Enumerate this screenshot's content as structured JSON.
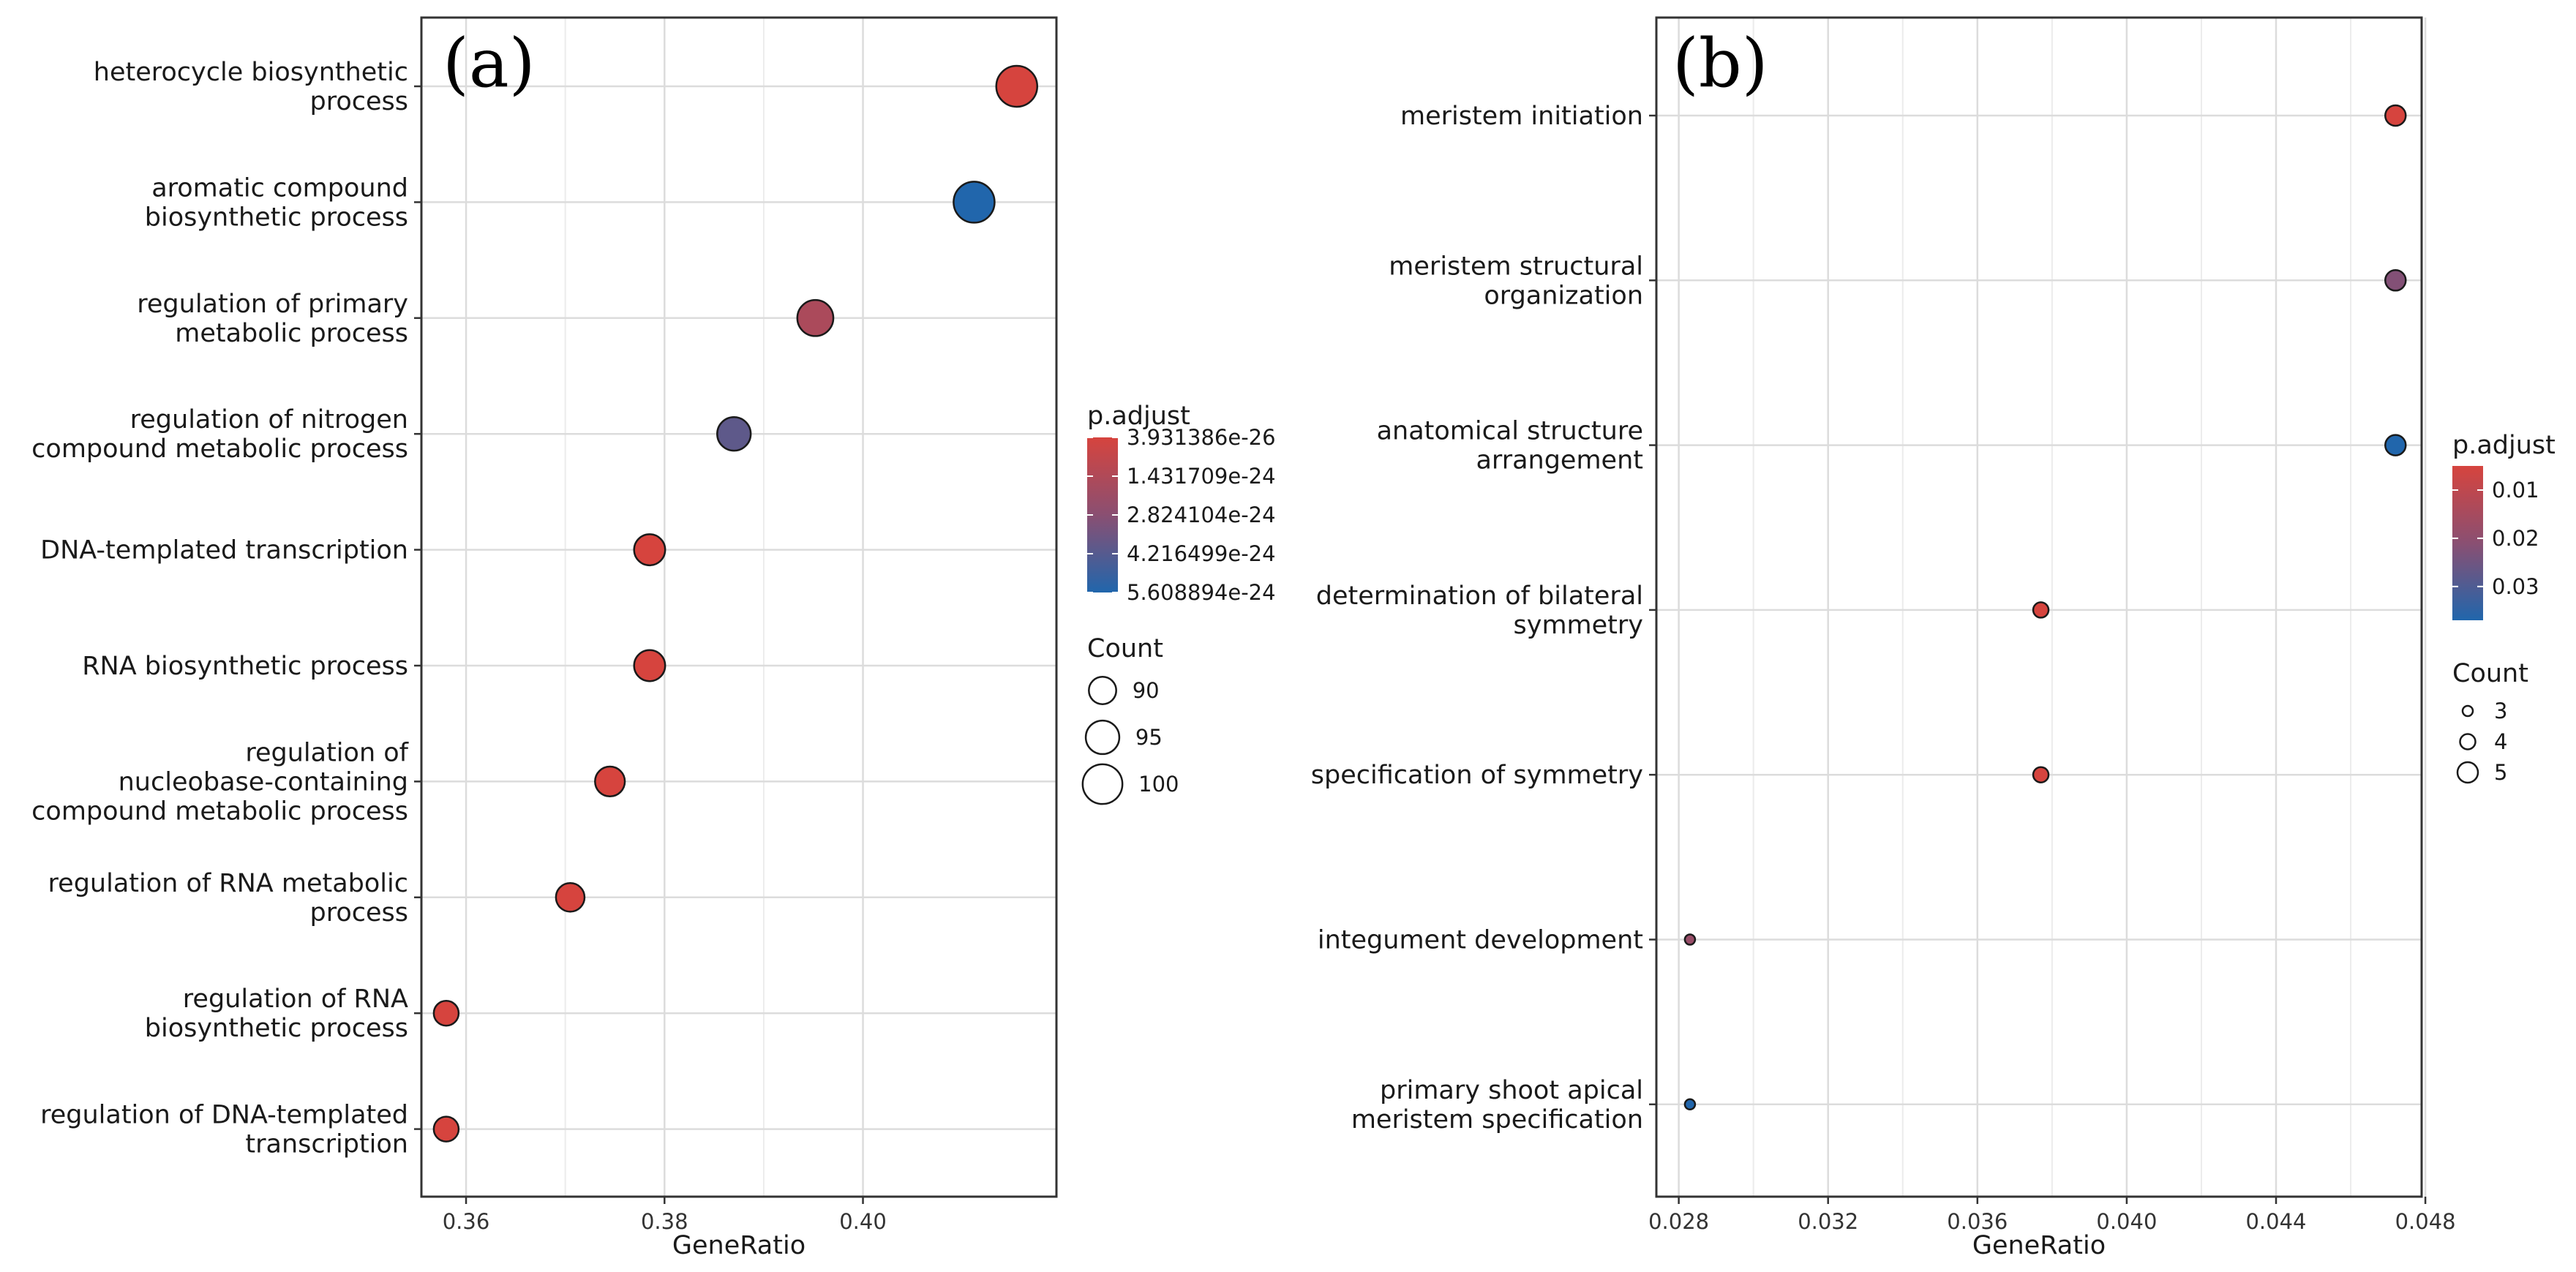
{
  "chart_data": [
    {
      "type": "scatter",
      "panel_label": "(a)",
      "xlabel": "GeneRatio",
      "xlim": [
        0.3555,
        0.4195
      ],
      "xticks": [
        0.36,
        0.38,
        0.4
      ],
      "xtick_labels": [
        "0.36",
        "0.38",
        "0.40"
      ],
      "categories": [
        {
          "label": [
            "heterocycle biosynthetic",
            "process"
          ],
          "gene_ratio": 0.4155,
          "count": 101,
          "p_adjust": 3.931386e-26
        },
        {
          "label": [
            "aromatic compound",
            "biosynthetic process"
          ],
          "gene_ratio": 0.4112,
          "count": 101,
          "p_adjust": 5.608894e-24
        },
        {
          "label": [
            "regulation of primary",
            "metabolic process"
          ],
          "gene_ratio": 0.3952,
          "count": 97,
          "p_adjust": 1.6e-24
        },
        {
          "label": [
            "regulation of nitrogen",
            "compound metabolic process"
          ],
          "gene_ratio": 0.387,
          "count": 95,
          "p_adjust": 4e-24
        },
        {
          "label": [
            "DNA-templated transcription"
          ],
          "gene_ratio": 0.3785,
          "count": 93,
          "p_adjust": 4e-26
        },
        {
          "label": [
            "RNA biosynthetic process"
          ],
          "gene_ratio": 0.3785,
          "count": 93,
          "p_adjust": 4e-26
        },
        {
          "label": [
            "regulation of",
            "nucleobase-containing",
            "compound metabolic process"
          ],
          "gene_ratio": 0.3745,
          "count": 92,
          "p_adjust": 4e-26
        },
        {
          "label": [
            "regulation of RNA metabolic",
            "process"
          ],
          "gene_ratio": 0.3705,
          "count": 91,
          "p_adjust": 4e-26
        },
        {
          "label": [
            "regulation of RNA",
            "biosynthetic process"
          ],
          "gene_ratio": 0.358,
          "count": 88,
          "p_adjust": 4e-26
        },
        {
          "label": [
            "regulation of DNA-templated",
            "transcription"
          ],
          "gene_ratio": 0.358,
          "count": 88,
          "p_adjust": 4e-26
        }
      ],
      "color_scale": {
        "title": "p.adjust",
        "min": 3.931386e-26,
        "max": 5.608894e-24,
        "low_color": "#d6443e",
        "high_color": "#2166ac",
        "ticks": [
          3.931386e-26,
          1.431709e-24,
          2.824104e-24,
          4.216499e-24,
          5.608894e-24
        ],
        "tick_labels": [
          "3.931386e-26",
          "1.431709e-24",
          "2.824104e-24",
          "4.216499e-24",
          "5.608894e-24"
        ]
      },
      "size_scale": {
        "title": "Count",
        "values": [
          90,
          95,
          100
        ],
        "labels": [
          "90",
          "95",
          "100"
        ],
        "domain": [
          88,
          101
        ]
      }
    },
    {
      "type": "scatter",
      "panel_label": "(b)",
      "xlabel": "GeneRatio",
      "xlim": [
        0.0274,
        0.0479
      ],
      "xticks": [
        0.028,
        0.032,
        0.036,
        0.04,
        0.044,
        0.048
      ],
      "xtick_labels": [
        "0.028",
        "0.032",
        "0.036",
        "0.040",
        "0.044",
        "0.048"
      ],
      "categories": [
        {
          "label": [
            "meristem initiation"
          ],
          "gene_ratio": 0.0472,
          "count": 5,
          "p_adjust": 0.005
        },
        {
          "label": [
            "meristem structural",
            "organization"
          ],
          "gene_ratio": 0.0472,
          "count": 5,
          "p_adjust": 0.022
        },
        {
          "label": [
            "anatomical structure",
            "arrangement"
          ],
          "gene_ratio": 0.0472,
          "count": 5,
          "p_adjust": 0.037
        },
        {
          "label": [
            "determination of bilateral",
            "symmetry"
          ],
          "gene_ratio": 0.0377,
          "count": 4,
          "p_adjust": 0.005
        },
        {
          "label": [
            "specification of symmetry"
          ],
          "gene_ratio": 0.0377,
          "count": 4,
          "p_adjust": 0.005
        },
        {
          "label": [
            "integument development"
          ],
          "gene_ratio": 0.0283,
          "count": 3,
          "p_adjust": 0.018
        },
        {
          "label": [
            "primary shoot apical",
            "meristem specification"
          ],
          "gene_ratio": 0.0283,
          "count": 3,
          "p_adjust": 0.037
        }
      ],
      "color_scale": {
        "title": "p.adjust",
        "min": 0.005,
        "max": 0.037,
        "low_color": "#d6443e",
        "high_color": "#2166ac",
        "ticks": [
          0.01,
          0.02,
          0.03
        ],
        "tick_labels": [
          "0.01",
          "0.02",
          "0.03"
        ]
      },
      "size_scale": {
        "title": "Count",
        "values": [
          3,
          4,
          5
        ],
        "labels": [
          "3",
          "4",
          "5"
        ],
        "domain": [
          3,
          5
        ]
      }
    }
  ]
}
